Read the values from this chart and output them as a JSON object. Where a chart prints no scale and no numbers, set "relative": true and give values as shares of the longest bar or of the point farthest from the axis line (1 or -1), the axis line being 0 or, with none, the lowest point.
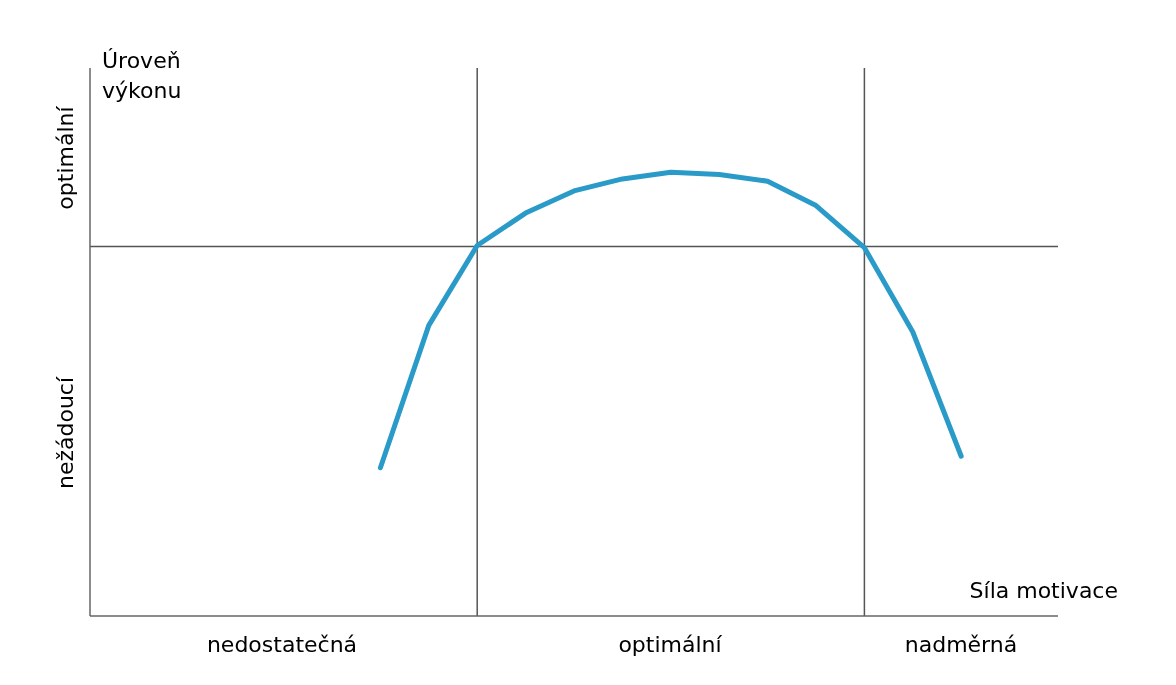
{
  "chart_data": {
    "type": "line",
    "relative": true,
    "xlabel": "Síla motivace",
    "ylabel": "Úroveň výkonu",
    "categories": [
      null,
      null,
      null,
      null,
      null,
      null,
      null,
      null,
      null,
      null,
      null,
      null,
      null,
      null,
      null,
      null,
      null,
      null,
      null,
      null,
      null
    ],
    "series": [
      {
        "color": "#2a9ac8",
        "values": [
          null,
          null,
          null,
          null,
          null,
          null,
          0.334,
          0.655,
          0.835,
          0.908,
          0.958,
          0.985,
          1,
          0.995,
          0.98,
          0.925,
          0.83,
          0.64,
          0.36,
          null,
          null
        ]
      }
    ],
    "ref_lines": [
      {
        "axis": "y",
        "value": 0.833,
        "color": "#555555"
      }
    ],
    "annotations": [
      "nedostatečná",
      "optimální",
      "nadměrná",
      "nežádoucí",
      "optimální"
    ],
    "grid": false,
    "legend": false,
    "marker": "none",
    "line_style": "solid"
  }
}
